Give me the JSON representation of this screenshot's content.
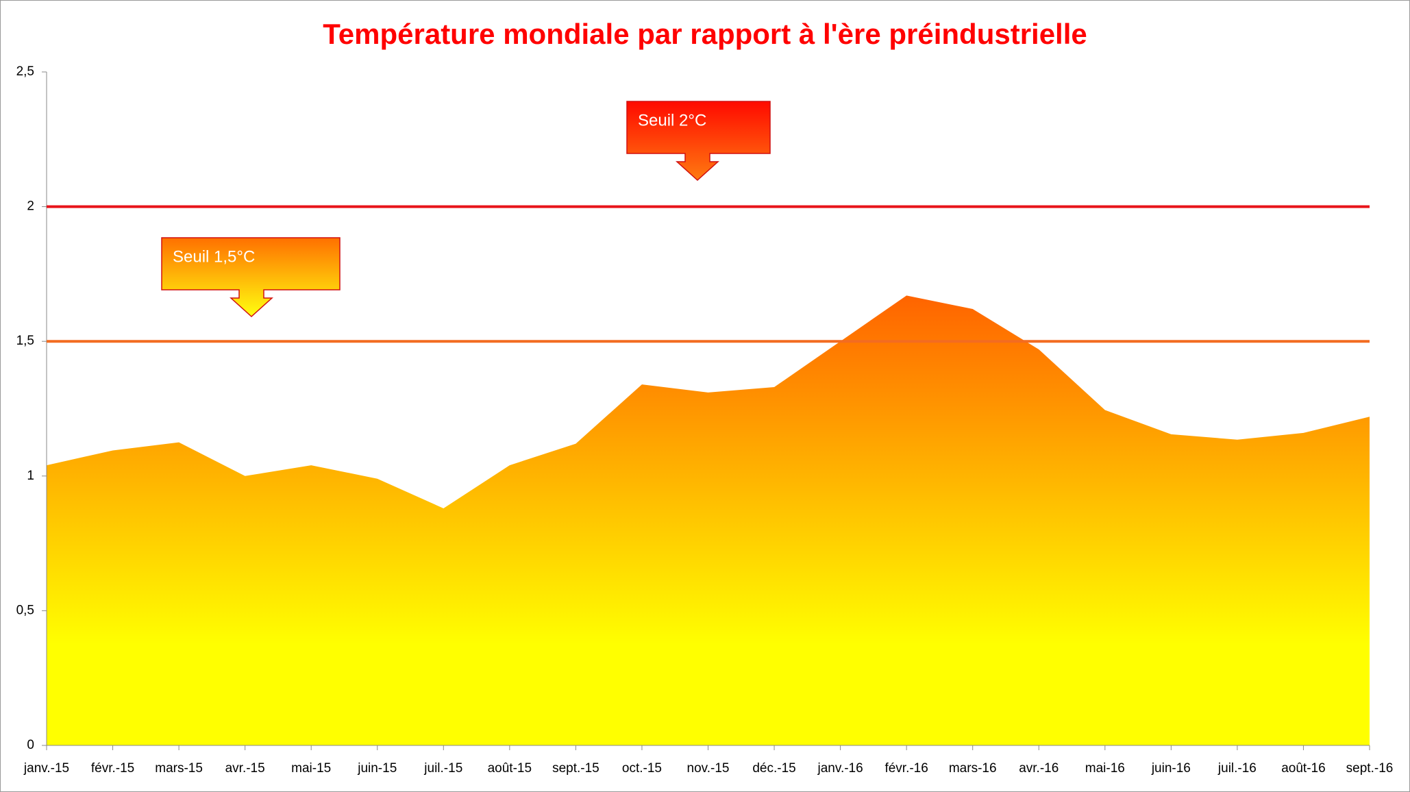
{
  "chart_data": {
    "type": "area",
    "title": "Température mondiale par rapport à l'ère préindustrielle",
    "categories": [
      "janv.-15",
      "févr.-15",
      "mars-15",
      "avr.-15",
      "mai-15",
      "juin-15",
      "juil.-15",
      "août-15",
      "sept.-15",
      "oct.-15",
      "nov.-15",
      "déc.-15",
      "janv.-16",
      "févr.-16",
      "mars-16",
      "avr.-16",
      "mai-16",
      "juin-16",
      "juil.-16",
      "août-16",
      "sept.-16"
    ],
    "values": [
      1.04,
      1.095,
      1.125,
      1.0,
      1.04,
      0.99,
      0.88,
      1.04,
      1.12,
      1.34,
      1.31,
      1.33,
      1.5,
      1.67,
      1.62,
      1.47,
      1.245,
      1.155,
      1.135,
      1.16,
      1.22
    ],
    "color": [
      "#ffff00",
      "#ff5a00"
    ],
    "ylim": [
      0,
      2.5
    ],
    "yticks": [
      0,
      {
        "value": 0.5,
        "label": "0,5"
      },
      1,
      {
        "value": 1.5,
        "label": "1,5"
      },
      2,
      {
        "value": 2.5,
        "label": "2,5"
      }
    ],
    "thresholds": [
      {
        "value": 2,
        "label": "Seuil 2°C",
        "color": "#e8141a"
      },
      {
        "value": 1.5,
        "label": "Seuil 1,5°C",
        "color": "#f36c21"
      }
    ]
  }
}
